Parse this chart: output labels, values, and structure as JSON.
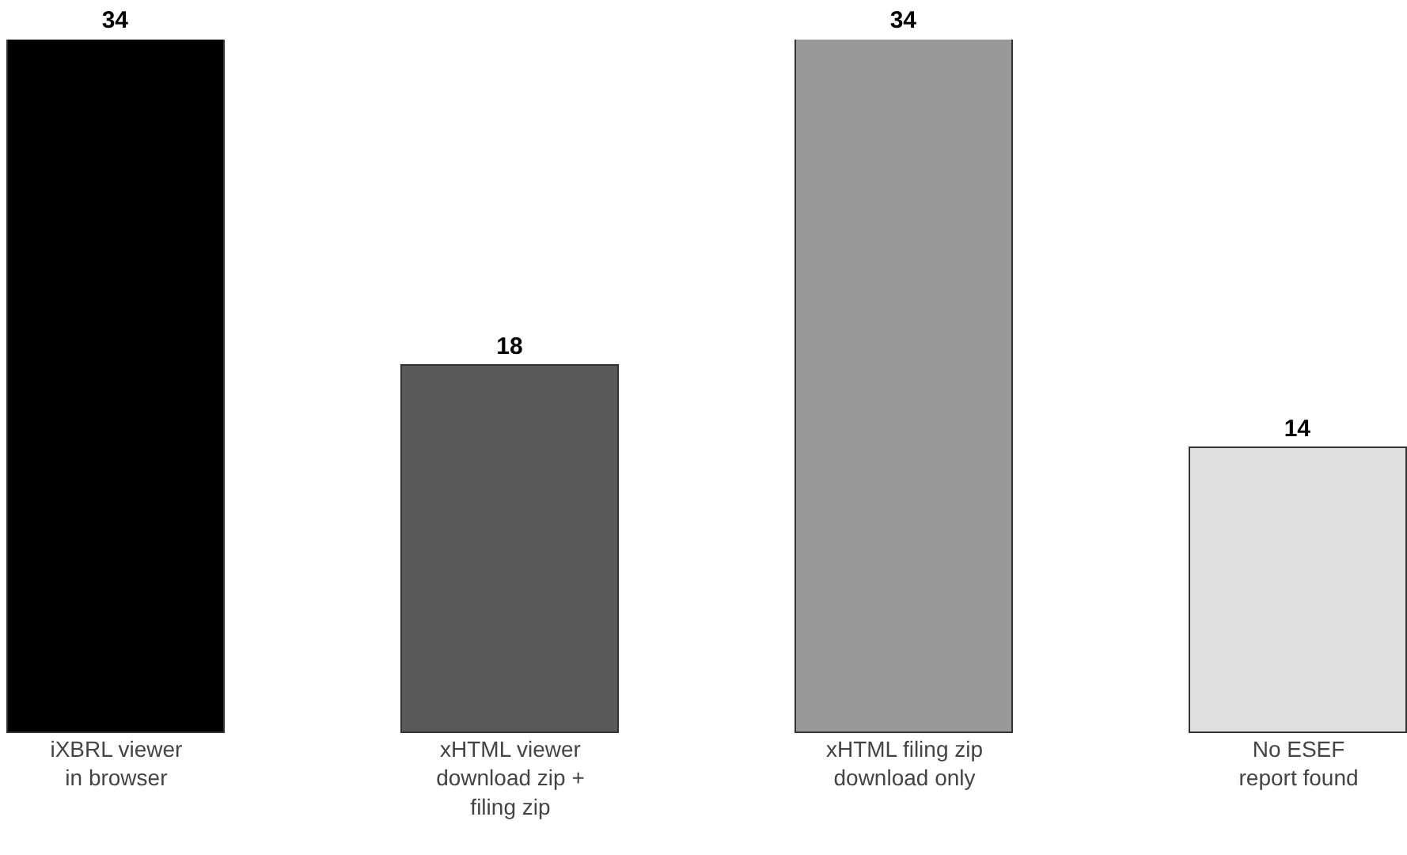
{
  "chart_data": {
    "type": "bar",
    "categories": [
      "iXBRL viewer\nin browser",
      "xHTML viewer\ndownload zip +\nfiling zip",
      "xHTML filing zip\ndownload only",
      "No ESEF\nreport found"
    ],
    "values": [
      34,
      18,
      34,
      14
    ],
    "colors": [
      "#000000",
      "#595959",
      "#999999",
      "#e0e0e0"
    ],
    "data_labels": true
  }
}
